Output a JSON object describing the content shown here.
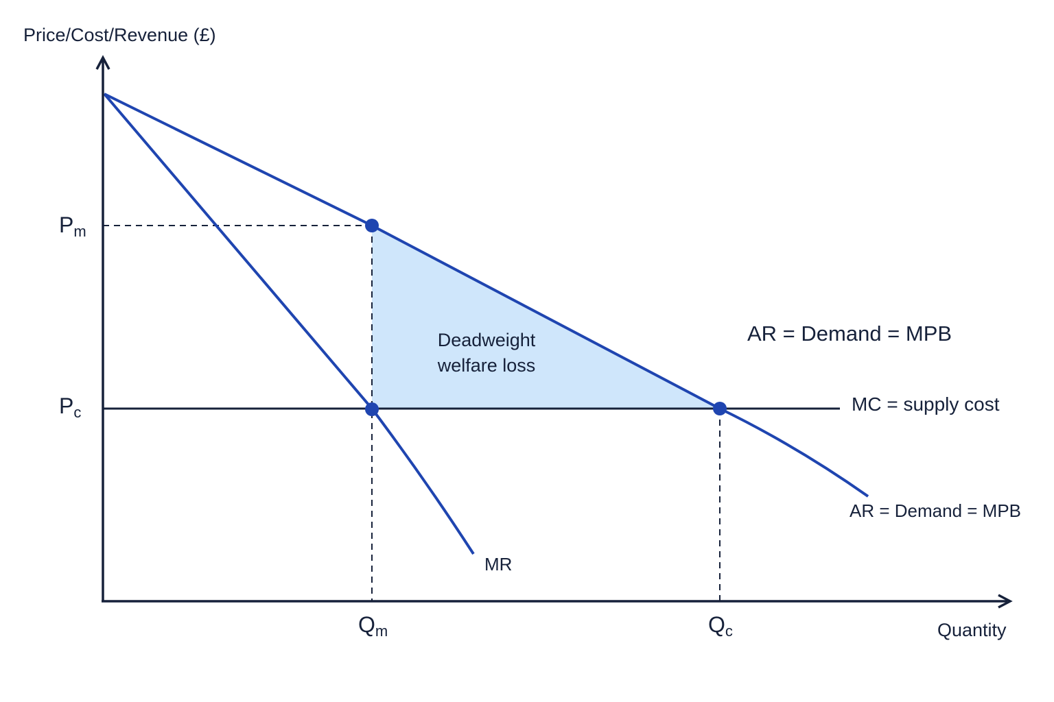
{
  "axes": {
    "y_label": "Price/Cost/Revenue (£)",
    "x_label": "Quantity"
  },
  "ticks": {
    "pm": {
      "main": "P",
      "sub": "m"
    },
    "pc": {
      "main": "P",
      "sub": "c"
    },
    "qm": {
      "main": "Q",
      "sub": "m"
    },
    "qc": {
      "main": "Q",
      "sub": "c"
    }
  },
  "labels": {
    "demand_upper": "AR = Demand = MPB",
    "demand_lower": "AR = Demand = MPB",
    "mc": "MC = supply cost",
    "mr": "MR",
    "dwl_line1": "Deadweight",
    "dwl_line2": "welfare loss"
  },
  "colors": {
    "curve": "#1f45b0",
    "axis": "#16213a",
    "shade": "#cfe6fb",
    "point": "#1f45b0"
  }
}
